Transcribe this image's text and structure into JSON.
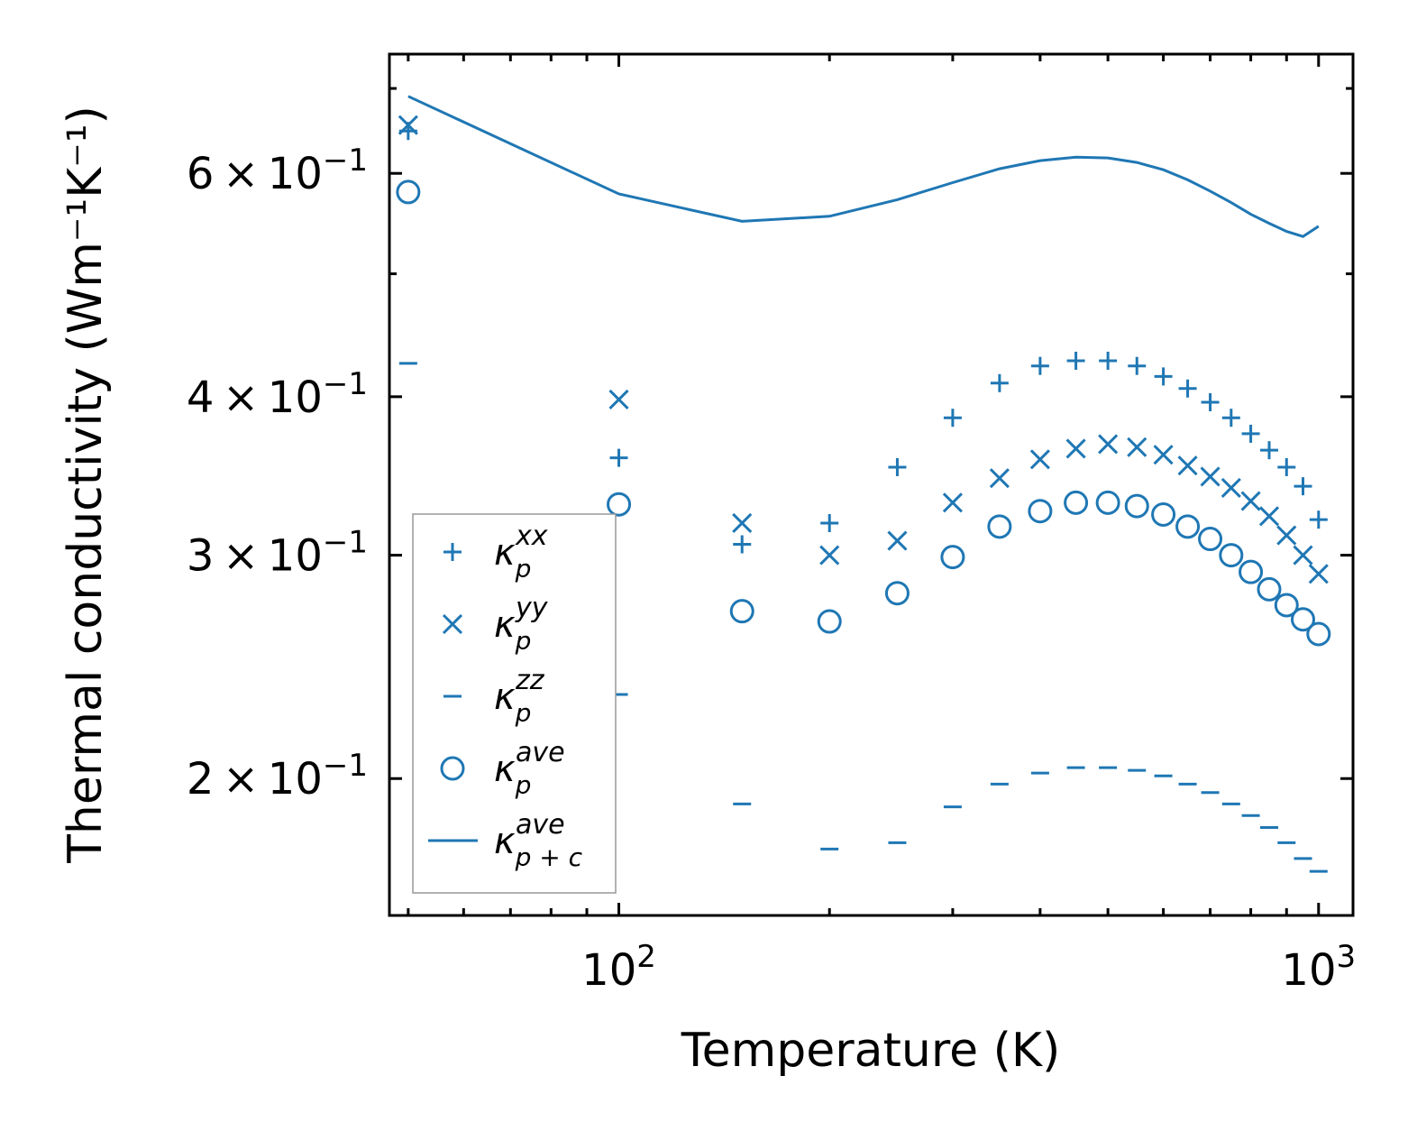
{
  "chart_data": {
    "type": "scatter",
    "xscale": "log",
    "yscale": "log",
    "xlabel": "Temperature (K)",
    "ylabel": "Thermal conductivity (Wm⁻¹K⁻¹)",
    "xlim": [
      47,
      1120
    ],
    "ylim": [
      0.156,
      0.745
    ],
    "x": [
      50,
      100,
      150,
      200,
      250,
      300,
      350,
      400,
      450,
      500,
      550,
      600,
      650,
      700,
      750,
      800,
      850,
      900,
      950,
      1000
    ],
    "x_ticks": [
      {
        "value": 100,
        "base": "10",
        "exp": "2"
      },
      {
        "value": 1000,
        "base": "10",
        "exp": "3"
      }
    ],
    "y_ticks": [
      {
        "value": 0.2,
        "mant": "2",
        "times": "×",
        "base": "10",
        "exp": "−1"
      },
      {
        "value": 0.3,
        "mant": "3",
        "times": "×",
        "base": "10",
        "exp": "−1"
      },
      {
        "value": 0.4,
        "mant": "4",
        "times": "×",
        "base": "10",
        "exp": "−1"
      },
      {
        "value": 0.6,
        "mant": "6",
        "times": "×",
        "base": "10",
        "exp": "−1"
      }
    ],
    "y_minor_ticks": [
      0.5,
      0.7
    ],
    "x_minor_ticks": [
      50,
      60,
      70,
      80,
      90,
      200,
      300,
      400,
      500,
      600,
      700,
      800,
      900
    ],
    "series": [
      {
        "name": "kappa_p_xx",
        "label_base": "κ",
        "label_sub": "p",
        "label_sup": "xx",
        "marker": "plus",
        "values": [
          0.648,
          0.358,
          0.306,
          0.318,
          0.352,
          0.385,
          0.41,
          0.423,
          0.427,
          0.427,
          0.423,
          0.415,
          0.406,
          0.396,
          0.385,
          0.374,
          0.363,
          0.352,
          0.34,
          0.32
        ]
      },
      {
        "name": "kappa_p_yy",
        "label_base": "κ",
        "label_sub": "p",
        "label_sup": "yy",
        "marker": "x",
        "values": [
          0.655,
          0.398,
          0.318,
          0.3,
          0.308,
          0.33,
          0.345,
          0.357,
          0.364,
          0.367,
          0.365,
          0.36,
          0.353,
          0.346,
          0.339,
          0.331,
          0.322,
          0.311,
          0.3,
          0.29
        ]
      },
      {
        "name": "kappa_p_zz",
        "label_base": "κ",
        "label_sub": "p",
        "label_sup": "zz",
        "marker": "hline",
        "values": [
          0.425,
          0.233,
          0.191,
          0.176,
          0.178,
          0.19,
          0.198,
          0.202,
          0.204,
          0.204,
          0.203,
          0.201,
          0.198,
          0.195,
          0.191,
          0.187,
          0.183,
          0.178,
          0.173,
          0.169
        ]
      },
      {
        "name": "kappa_p_ave",
        "label_base": "κ",
        "label_sub": "p",
        "label_sup": "ave",
        "marker": "circle",
        "values": [
          0.58,
          0.329,
          0.271,
          0.266,
          0.28,
          0.299,
          0.316,
          0.325,
          0.33,
          0.33,
          0.328,
          0.323,
          0.316,
          0.309,
          0.3,
          0.291,
          0.282,
          0.274,
          0.267,
          0.26
        ]
      },
      {
        "name": "kappa_pc_ave",
        "label_base": "κ",
        "label_sub": "p + c",
        "label_sup": "ave",
        "marker": "line",
        "values": [
          0.69,
          0.578,
          0.55,
          0.555,
          0.572,
          0.59,
          0.605,
          0.614,
          0.618,
          0.617,
          0.612,
          0.604,
          0.593,
          0.581,
          0.569,
          0.557,
          0.548,
          0.54,
          0.535,
          0.545
        ]
      }
    ],
    "legend_position": "lower-left",
    "color": "#1f77b4"
  }
}
